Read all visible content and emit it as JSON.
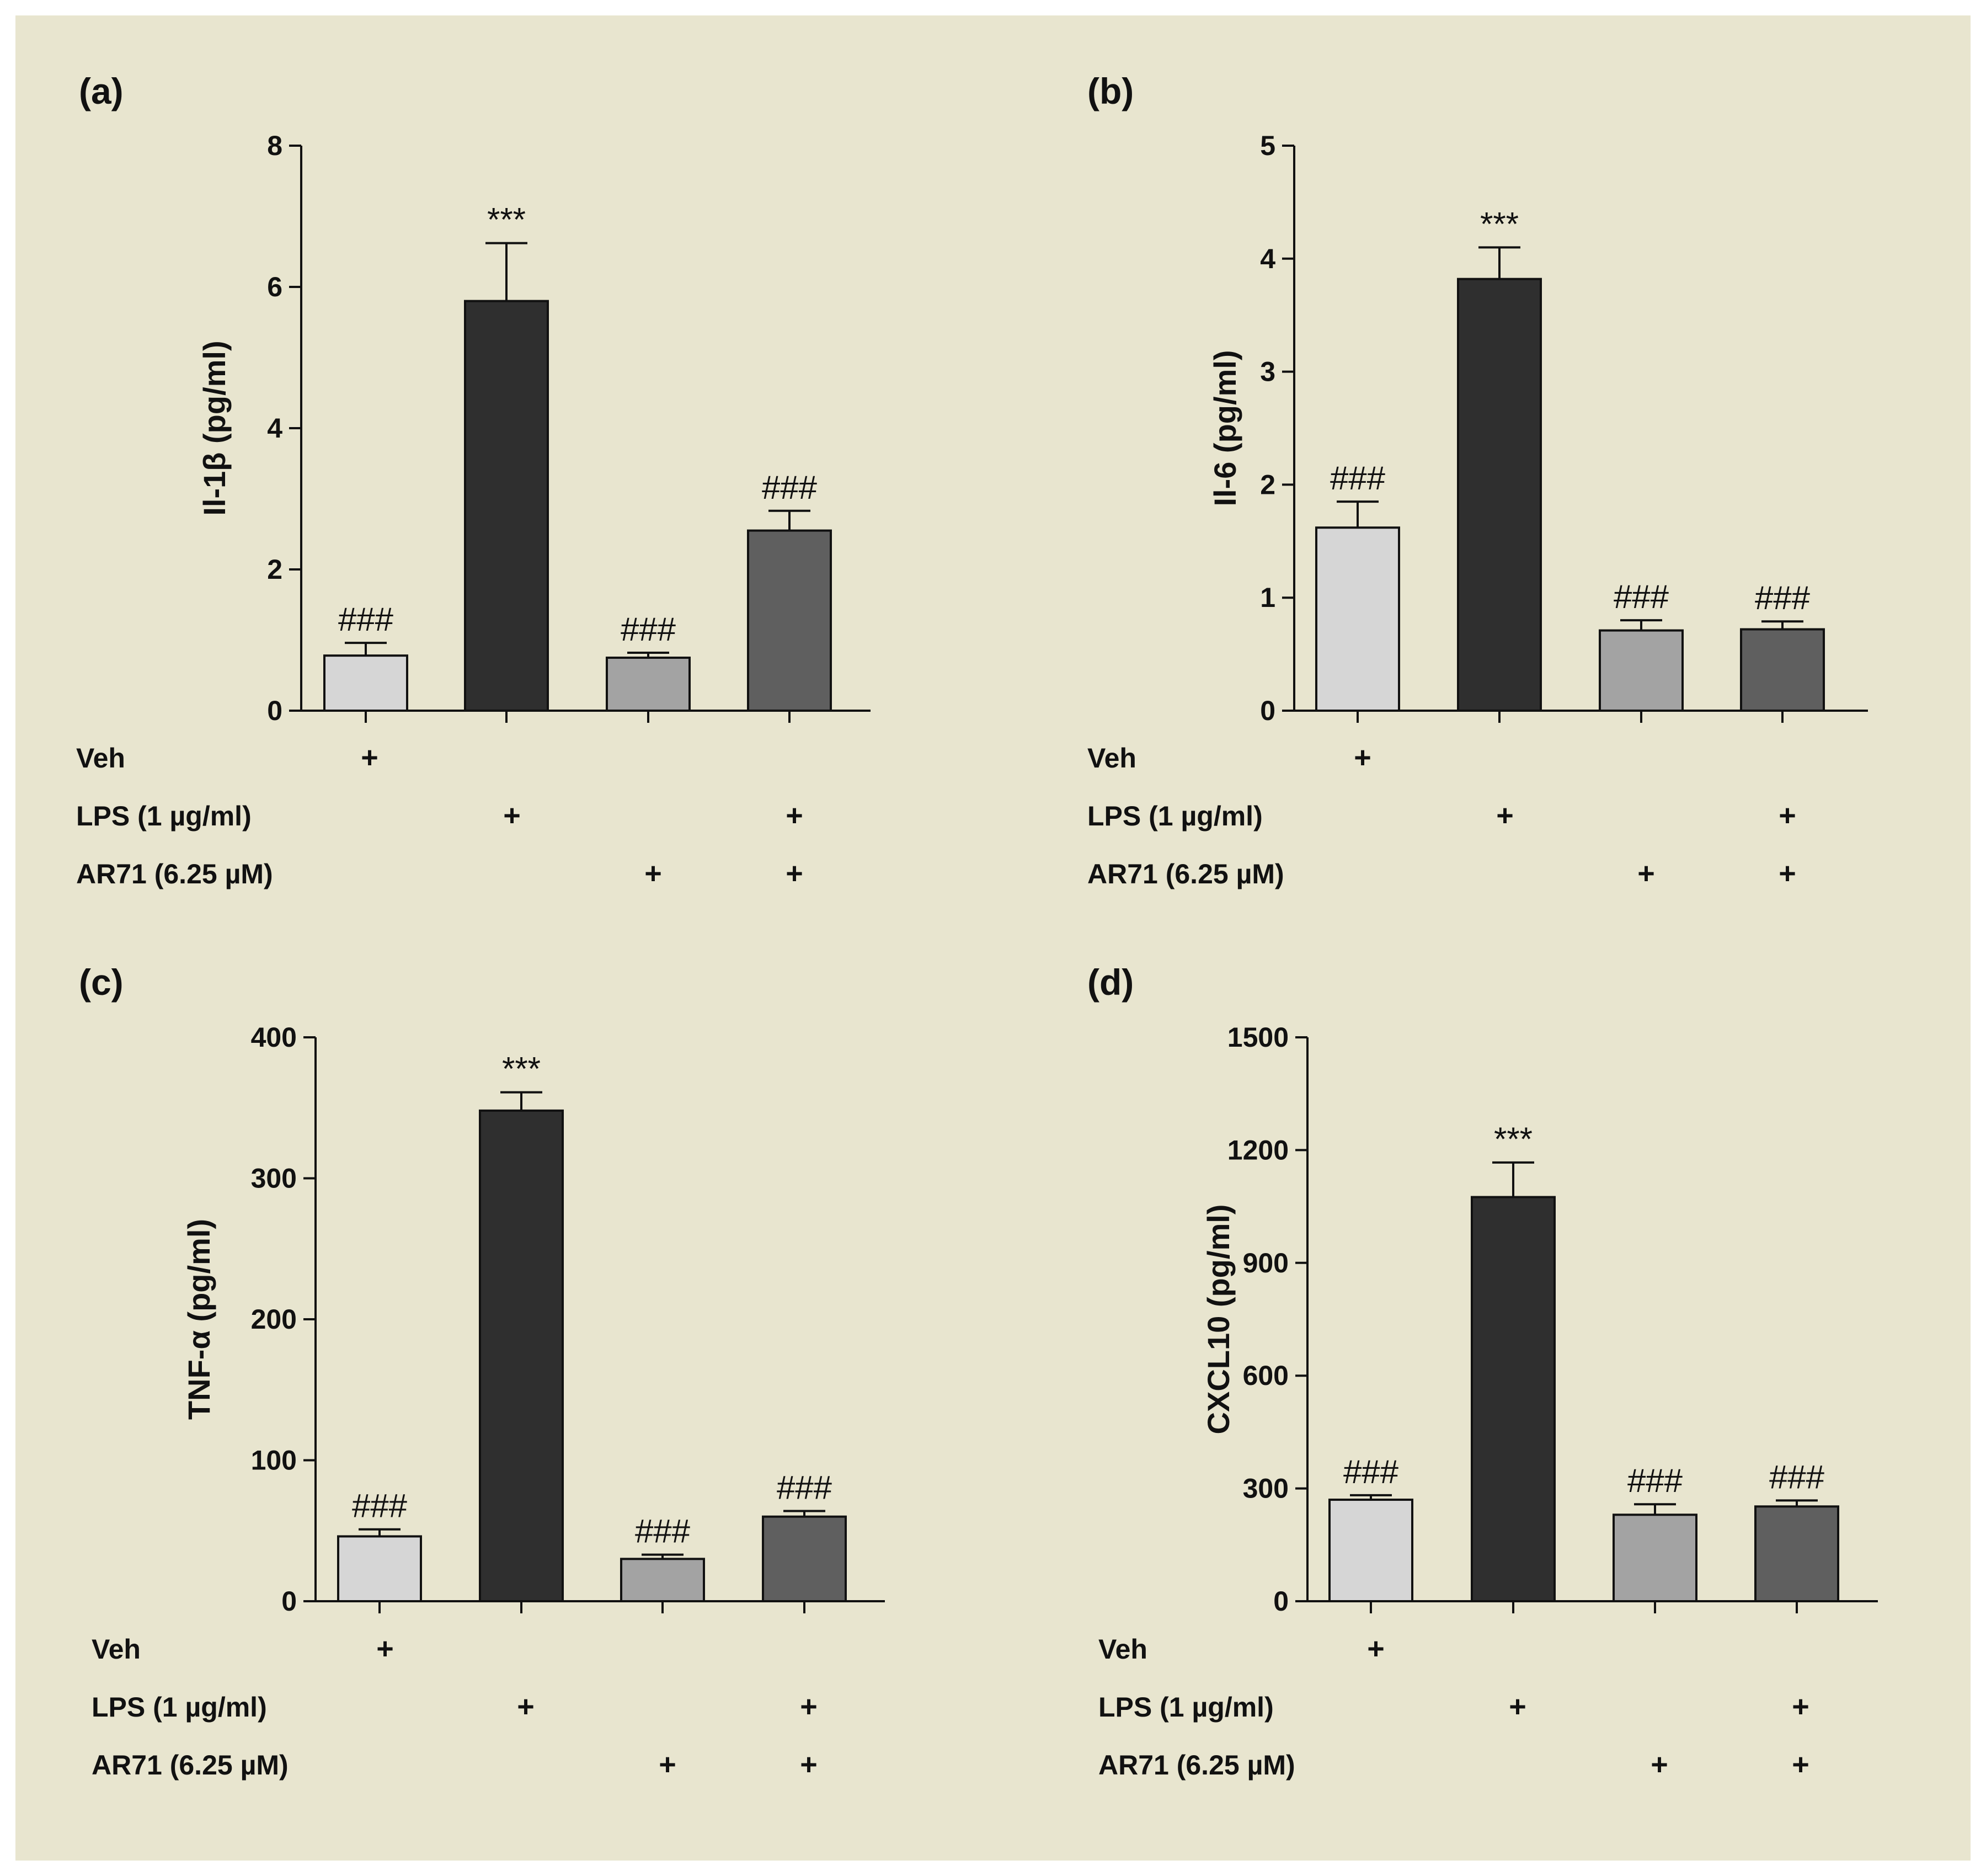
{
  "colors": {
    "background": "#e8e5cf",
    "bars": [
      "#d6d6d6",
      "#2f2f2f",
      "#a3a3a3",
      "#5f5f5f"
    ],
    "axis": "#111111"
  },
  "conditions": {
    "labels": [
      "Veh",
      "LPS (1 µg/ml)",
      "AR71 (6.25 µM)"
    ],
    "matrix": [
      [
        "+",
        "",
        "",
        ""
      ],
      [
        "",
        "+",
        "",
        "+"
      ],
      [
        "",
        "",
        "+",
        "+"
      ]
    ]
  },
  "chart_data": [
    {
      "type": "bar",
      "panel": "(a)",
      "ylabel": "Il-1β (pg/ml)",
      "categories": [
        "Veh",
        "LPS",
        "AR71",
        "LPS + AR71"
      ],
      "values": [
        0.78,
        5.8,
        0.75,
        2.55
      ],
      "errors": [
        0.18,
        0.82,
        0.07,
        0.28
      ],
      "significance": [
        "###",
        "***",
        "###",
        "###"
      ],
      "ylim": [
        0,
        8
      ],
      "yticks": [
        0,
        2,
        4,
        6,
        8
      ]
    },
    {
      "type": "bar",
      "panel": "(b)",
      "ylabel": "Il-6 (pg/ml)",
      "categories": [
        "Veh",
        "LPS",
        "AR71",
        "LPS + AR71"
      ],
      "values": [
        1.62,
        3.82,
        0.71,
        0.72
      ],
      "errors": [
        0.23,
        0.28,
        0.09,
        0.07
      ],
      "significance": [
        "###",
        "***",
        "###",
        "###"
      ],
      "ylim": [
        0,
        5
      ],
      "yticks": [
        0,
        1,
        2,
        3,
        4,
        5
      ]
    },
    {
      "type": "bar",
      "panel": "(c)",
      "ylabel": "TNF-α (pg/ml)",
      "categories": [
        "Veh",
        "LPS",
        "AR71",
        "LPS + AR71"
      ],
      "values": [
        46,
        348,
        30,
        60
      ],
      "errors": [
        5,
        13,
        3,
        4
      ],
      "significance": [
        "###",
        "***",
        "###",
        "###"
      ],
      "ylim": [
        0,
        400
      ],
      "yticks": [
        0,
        100,
        200,
        300,
        400
      ]
    },
    {
      "type": "bar",
      "panel": "(d)",
      "ylabel": "CXCL10 (pg/ml)",
      "categories": [
        "Veh",
        "LPS",
        "AR71",
        "LPS + AR71"
      ],
      "values": [
        270,
        1075,
        230,
        252
      ],
      "errors": [
        12,
        92,
        28,
        16
      ],
      "significance": [
        "###",
        "***",
        "###",
        "###"
      ],
      "ylim": [
        0,
        1500
      ],
      "yticks": [
        0,
        300,
        600,
        900,
        1200,
        1500
      ]
    }
  ]
}
